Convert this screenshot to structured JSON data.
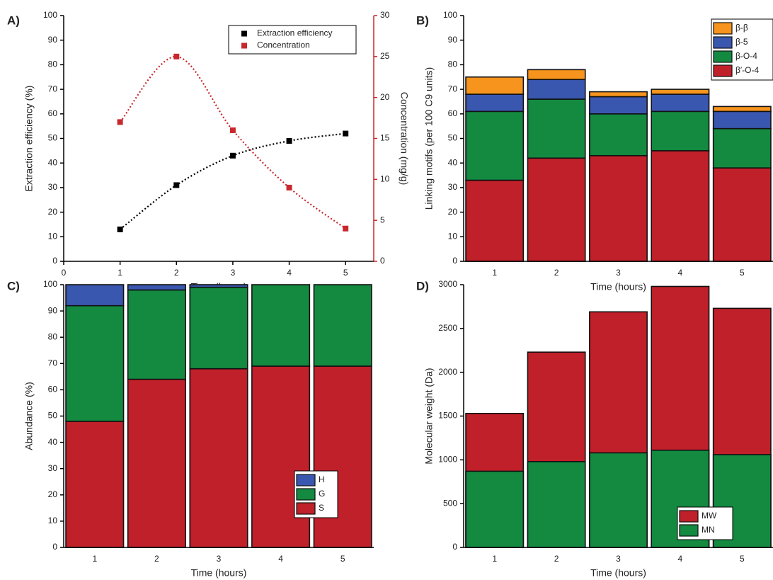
{
  "chart_data": [
    {
      "type": "line",
      "label": "A)",
      "x_label": "Time (hours)",
      "y_label": "Extraction efficiency (%)",
      "y2_label": "Concentration (mg/g)",
      "x": [
        1,
        2,
        3,
        4,
        5
      ],
      "xlim": [
        0,
        5.5
      ],
      "xticks": [
        0,
        1,
        2,
        3,
        4,
        5
      ],
      "ylim": [
        0,
        100
      ],
      "yticks": [
        0,
        10,
        20,
        30,
        40,
        50,
        60,
        70,
        80,
        90,
        100
      ],
      "y2lim": [
        0,
        30
      ],
      "y2ticks": [
        0,
        5,
        10,
        15,
        20,
        25,
        30
      ],
      "y2_color": "#c8282d",
      "legend": "upper right",
      "series": [
        {
          "name": "Extraction efficiency",
          "color": "#000000",
          "values": [
            13,
            31,
            43,
            49,
            52
          ]
        },
        {
          "name": "Concentration",
          "color": "#c8282d",
          "axis": "y2",
          "values": [
            17,
            25,
            16,
            9,
            4
          ]
        }
      ]
    },
    {
      "type": "bar",
      "stacked": true,
      "label": "B)",
      "x_label": "Time (hours)",
      "y_label": "Linking motifs (per 100 C9 units)",
      "categories": [
        "1",
        "2",
        "3",
        "4",
        "5"
      ],
      "ylim": [
        0,
        100
      ],
      "yticks": [
        0,
        10,
        20,
        30,
        40,
        50,
        60,
        70,
        80,
        90,
        100
      ],
      "legend": "upper right",
      "series": [
        {
          "name": "β′-O-4",
          "color": "#c0202a",
          "values": [
            33,
            42,
            43,
            45,
            38
          ]
        },
        {
          "name": "β-O-4",
          "color": "#138a40",
          "values": [
            28,
            24,
            17,
            16,
            16
          ]
        },
        {
          "name": "β-5",
          "color": "#3a57b0",
          "values": [
            7,
            8,
            7,
            7,
            7
          ]
        },
        {
          "name": "β-β",
          "color": "#f7941d",
          "values": [
            7,
            4,
            2,
            2,
            2
          ]
        }
      ]
    },
    {
      "type": "bar",
      "stacked": true,
      "label": "C)",
      "x_label": "Time (hours)",
      "y_label": "Abundance (%)",
      "categories": [
        "1",
        "2",
        "3",
        "4",
        "5"
      ],
      "ylim": [
        0,
        100
      ],
      "yticks": [
        0,
        10,
        20,
        30,
        40,
        50,
        60,
        70,
        80,
        90,
        100
      ],
      "legend": "lower right",
      "series": [
        {
          "name": "S",
          "color": "#c0202a",
          "values": [
            48,
            64,
            68,
            69,
            69
          ]
        },
        {
          "name": "G",
          "color": "#138a40",
          "values": [
            44,
            34,
            31,
            31,
            31
          ]
        },
        {
          "name": "H",
          "color": "#3a57b0",
          "values": [
            8,
            2,
            1,
            0,
            0
          ]
        }
      ]
    },
    {
      "type": "bar",
      "stacked": false,
      "label": "D)",
      "x_label": "Time (hours)",
      "y_label": "Molecular weight (Da)",
      "categories": [
        "1",
        "2",
        "3",
        "4",
        "5"
      ],
      "ylim": [
        0,
        3000
      ],
      "yticks": [
        0,
        500,
        1000,
        1500,
        2000,
        2500,
        3000
      ],
      "legend": "lower right",
      "series": [
        {
          "name": "MW",
          "color": "#c0202a",
          "values": [
            1530,
            2230,
            2690,
            2980,
            2730
          ]
        },
        {
          "name": "MN",
          "color": "#138a40",
          "values": [
            870,
            980,
            1080,
            1110,
            1060
          ]
        }
      ]
    }
  ]
}
